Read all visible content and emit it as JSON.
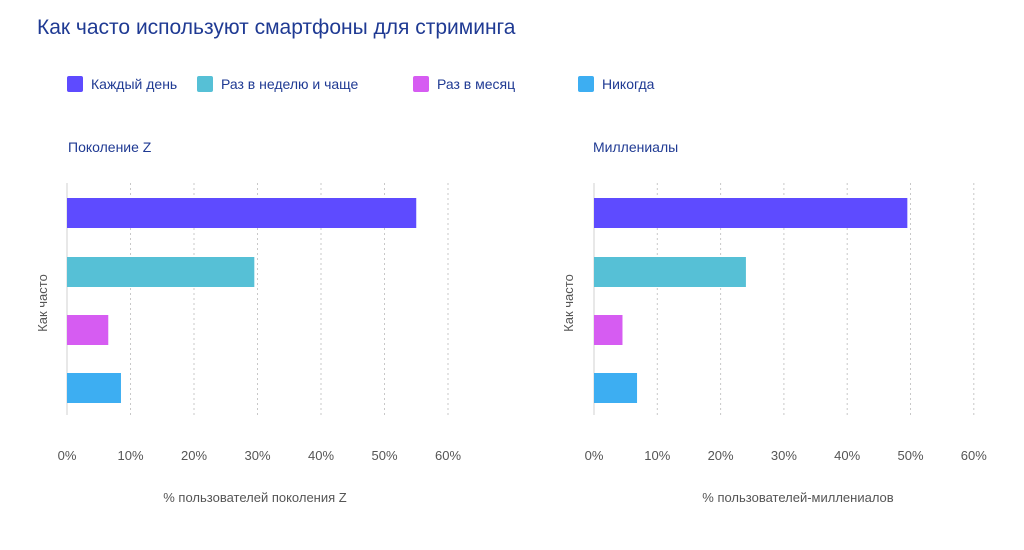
{
  "title": "Как часто используют смартфоны для стриминга",
  "legend": [
    {
      "label": "Каждый день",
      "color": "#5e4bff"
    },
    {
      "label": "Раз в неделю и чаще",
      "color": "#56c0d6"
    },
    {
      "label": "Раз в месяц",
      "color": "#d65cf2"
    },
    {
      "label": "Никогда",
      "color": "#3daef2"
    }
  ],
  "chart_data": [
    {
      "type": "bar",
      "orientation": "horizontal",
      "title": "Поколение Z",
      "xlabel": "% пользователей поколения Z",
      "ylabel": "Как часто",
      "categories": [
        "Каждый день",
        "Раз в неделю и чаще",
        "Раз в месяц",
        "Никогда"
      ],
      "values": [
        55,
        29.5,
        6.5,
        8.5
      ],
      "colors": [
        "#5e4bff",
        "#56c0d6",
        "#d65cf2",
        "#3daef2"
      ],
      "xlim": [
        0,
        60
      ],
      "xticks": [
        "0%",
        "10%",
        "20%",
        "30%",
        "40%",
        "50%",
        "60%"
      ],
      "grid": true
    },
    {
      "type": "bar",
      "orientation": "horizontal",
      "title": "Миллениалы",
      "xlabel": "% пользователей-миллениалов",
      "ylabel": "Как часто",
      "categories": [
        "Каждый день",
        "Раз в неделю и чаще",
        "Раз в месяц",
        "Никогда"
      ],
      "values": [
        49.5,
        24,
        4.5,
        6.8
      ],
      "colors": [
        "#5e4bff",
        "#56c0d6",
        "#d65cf2",
        "#3daef2"
      ],
      "xlim": [
        0,
        60
      ],
      "xticks": [
        "0%",
        "10%",
        "20%",
        "30%",
        "40%",
        "50%",
        "60%"
      ],
      "grid": true
    }
  ]
}
